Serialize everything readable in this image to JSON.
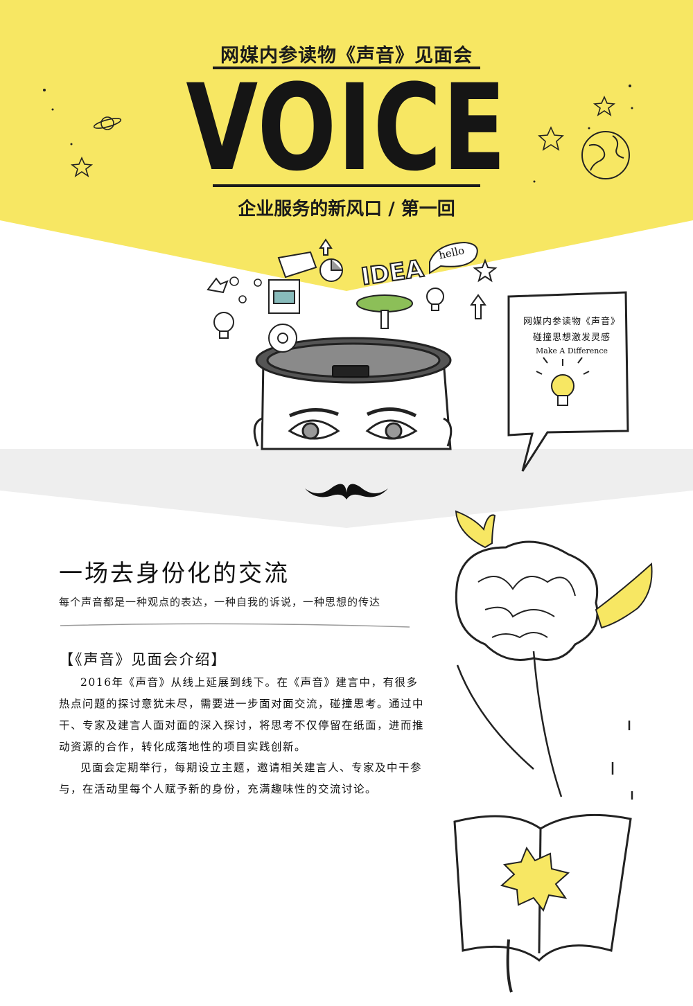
{
  "header": {
    "event_line": "网媒内参读物《声音》见面会",
    "title": "VOICE",
    "tagline": "企业服务的新风口 / 第一回"
  },
  "doodles": {
    "idea": "IDEA",
    "hello": "hello"
  },
  "speech_bubble": {
    "line1": "网媒内参读物《声音》",
    "line2": "碰撞思想激发灵感",
    "line3": "Make A Difference"
  },
  "section": {
    "heading": "一场去身份化的交流",
    "subheading": "每个声音都是一种观点的表达，一种自我的诉说，一种思想的传达",
    "intro_title": "【《声音》见面会介绍】",
    "paragraphs": [
      "2016年《声音》从线上延展到线下。在《声音》建言中，有很多热点问题的探讨意犹未尽，需要进一步面对面交流，碰撞思考。通过中干、专家及建言人面对面的深入探讨，将思考不仅停留在纸面，进而推动资源的合作，转化成落地性的项目实践创新。",
      "见面会定期举行，每期设立主题，邀请相关建言人、专家及中干参与，在活动里每个人赋予新的身份，充满趣味性的交流讨论。"
    ]
  },
  "colors": {
    "accent_yellow": "#f7e763",
    "band_gray": "#eeeeee",
    "ink": "#151515"
  }
}
